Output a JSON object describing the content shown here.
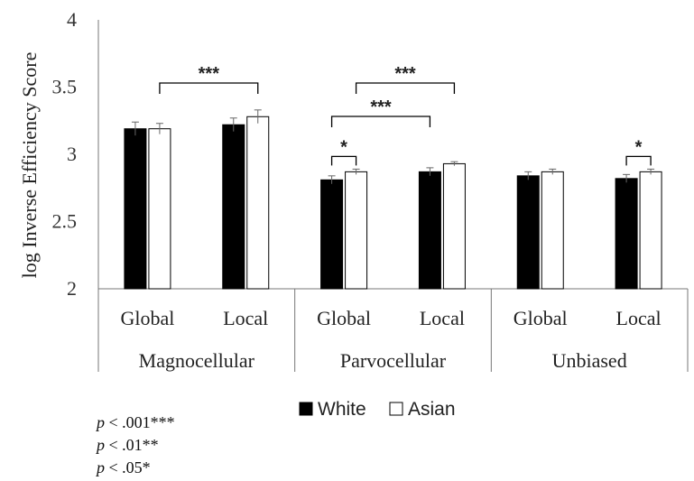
{
  "chart_data": {
    "type": "bar",
    "ylabel": "log Inverse Efficiency Score",
    "ylim": [
      2,
      4
    ],
    "yticks": [
      "2",
      "2.5",
      "3",
      "3.5",
      "4"
    ],
    "groups": [
      "Magnocellular",
      "Parvocellular",
      "Unbiased"
    ],
    "categories": [
      "Global",
      "Local",
      "Global",
      "Local",
      "Global",
      "Local"
    ],
    "series": [
      {
        "name": "White",
        "color": "#000000",
        "values": [
          3.19,
          3.22,
          2.81,
          2.87,
          2.84,
          2.82
        ],
        "errors": [
          0.05,
          0.05,
          0.03,
          0.03,
          0.03,
          0.03
        ]
      },
      {
        "name": "Asian",
        "color": "#ffffff",
        "values": [
          3.19,
          3.28,
          2.87,
          2.93,
          2.87,
          2.87
        ],
        "errors": [
          0.04,
          0.05,
          0.02,
          0.015,
          0.02,
          0.02
        ]
      }
    ],
    "significance": [
      {
        "label": "***",
        "from_category": 0,
        "to_category": 1,
        "series": "Asian"
      },
      {
        "label": "***",
        "from_category": 2,
        "to_category": 3,
        "series": "Asian"
      },
      {
        "label": "***",
        "from_category": 2,
        "to_category": 3,
        "series": "White"
      },
      {
        "label": "*",
        "from_category": 2,
        "to_category": 2,
        "series": "both"
      },
      {
        "label": "*",
        "from_category": 5,
        "to_category": 5,
        "series": "both"
      }
    ],
    "legend": {
      "placement": "bottom-center"
    },
    "notes": [
      {
        "italic": "p",
        "text": " < .001***"
      },
      {
        "italic": "p",
        "text": " < .01**"
      },
      {
        "italic": "p",
        "text": " < .05*"
      }
    ],
    "grid": false
  }
}
